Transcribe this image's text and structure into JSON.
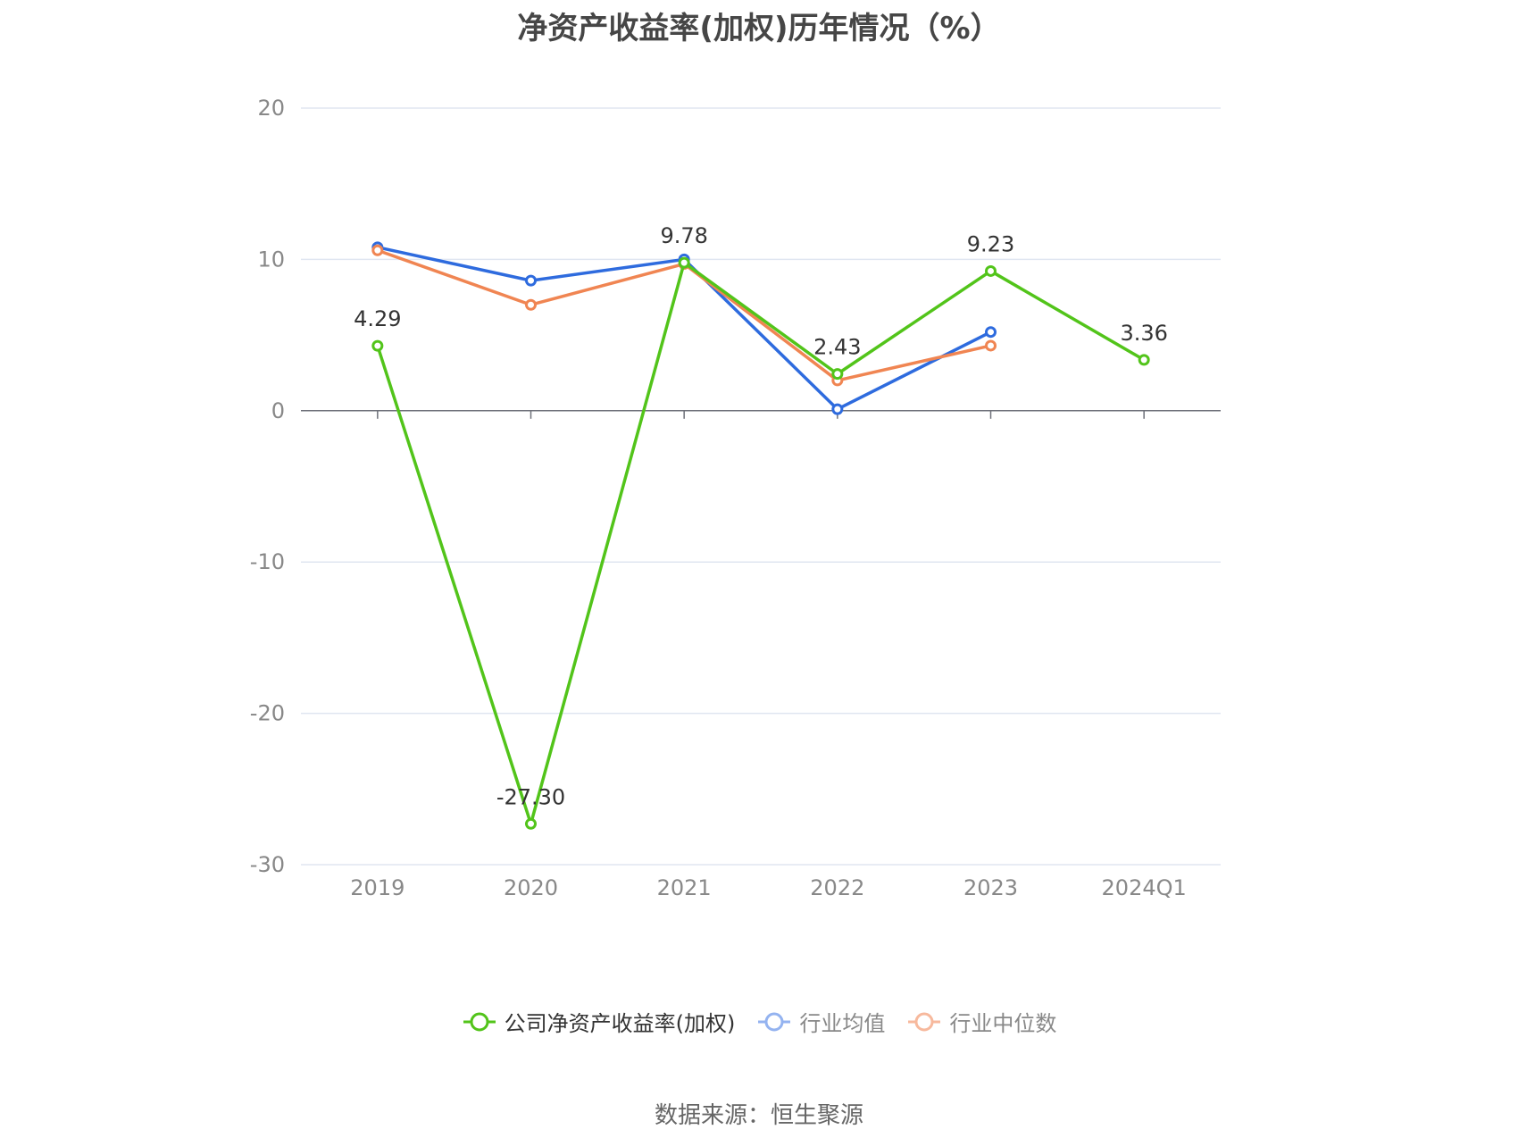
{
  "chart_data": {
    "type": "line",
    "title": "净资产收益率(加权)历年情况（%）",
    "categories": [
      "2019",
      "2020",
      "2021",
      "2022",
      "2023",
      "2024Q1"
    ],
    "ylim": [
      -30,
      20
    ],
    "yticks": [
      20,
      10,
      0,
      -10,
      -20,
      -30
    ],
    "grid": true,
    "legend_position": "bottom",
    "series": [
      {
        "name": "公司净资产收益率(加权)",
        "color": "#52c41a",
        "values": [
          4.29,
          -27.3,
          9.78,
          2.43,
          9.23,
          3.36
        ],
        "labels": [
          "4.29",
          "-27.30",
          "9.78",
          "2.43",
          "9.23",
          "3.36"
        ]
      },
      {
        "name": "行业均值",
        "color": "#2e6bde",
        "values": [
          10.8,
          8.6,
          10.0,
          0.1,
          5.2,
          null
        ]
      },
      {
        "name": "行业中位数",
        "color": "#f08552",
        "values": [
          10.6,
          7.0,
          9.7,
          2.0,
          4.3,
          null
        ]
      }
    ]
  },
  "legend": {
    "items": [
      {
        "label": "公司净资产收益率(加权)",
        "color": "#52c41a",
        "text_color": "#333333"
      },
      {
        "label": "行业均值",
        "color": "#94b3f0",
        "text_color": "#888888"
      },
      {
        "label": "行业中位数",
        "color": "#f7b99d",
        "text_color": "#888888"
      }
    ]
  },
  "source": "数据来源：恒生聚源"
}
